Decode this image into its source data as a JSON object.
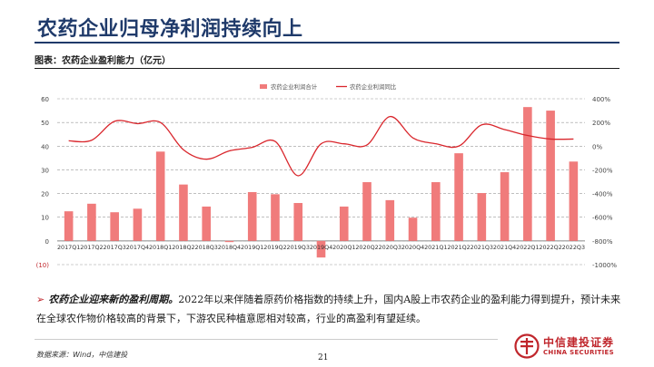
{
  "page": {
    "title": "农药企业归母净利润持续向上",
    "figure_caption": "图表：农药企业盈利能力（亿元）",
    "bullet_strong": "农药企业迎来新的盈利周期。",
    "bullet_text": "2022年以来伴随着原药价格指数的持续上升，国内A股上市农药企业的盈利能力得到提升，预计未来在全球农作物价格较高的背景下，下游农民种植意愿相对较高，行业的高盈利有望延续。",
    "source": "数据来源：Wind，中信建投",
    "page_number": "21",
    "logo_cn": "中信建投证券",
    "logo_en": "CHINA SECURITIES",
    "colors": {
      "brand": "#c0262c",
      "title": "#1f3a6a",
      "bar": "#f07b7b",
      "line": "#d9262c"
    }
  },
  "chart_data": {
    "type": "bar",
    "categories": [
      "2017Q1",
      "2017Q2",
      "2017Q3",
      "2017Q4",
      "2018Q1",
      "2018Q2",
      "2018Q3",
      "2018Q4",
      "2019Q1",
      "2019Q2",
      "2019Q3",
      "2019Q4",
      "2020Q1",
      "2020Q2",
      "2020Q3",
      "2020Q4",
      "2021Q1",
      "2021Q2",
      "2021Q3",
      "2021Q4",
      "2022Q1",
      "2022Q2",
      "2022Q3"
    ],
    "series": [
      {
        "name": "农药企业利润合计",
        "type": "bar",
        "axis": "left",
        "values": [
          12.5,
          15.7,
          12.1,
          13.6,
          37.7,
          23.8,
          14.5,
          -0.5,
          20.6,
          19.7,
          16.0,
          -7.0,
          14.5,
          24.8,
          17.2,
          9.8,
          24.8,
          37.0,
          20.2,
          29.0,
          56.5,
          55.0,
          33.5
        ]
      },
      {
        "name": "农药企业利润同比",
        "type": "line",
        "axis": "right",
        "values": [
          45,
          50,
          210,
          190,
          200,
          -30,
          -110,
          -40,
          -10,
          40,
          -250,
          20,
          20,
          10,
          250,
          70,
          20,
          0,
          180,
          140,
          90,
          60,
          60
        ]
      }
    ],
    "y_left": {
      "ticks": [
        "(10)",
        "0",
        "10",
        "20",
        "30",
        "40",
        "50",
        "60"
      ],
      "ylim": [
        -10,
        60
      ]
    },
    "y_right": {
      "ticks": [
        "-1000%",
        "-800%",
        "-600%",
        "-400%",
        "-200%",
        "0%",
        "200%",
        "400%"
      ],
      "ylim": [
        -1000,
        400
      ]
    },
    "legend_position": "top-center",
    "grid": "dashed horizontal"
  }
}
